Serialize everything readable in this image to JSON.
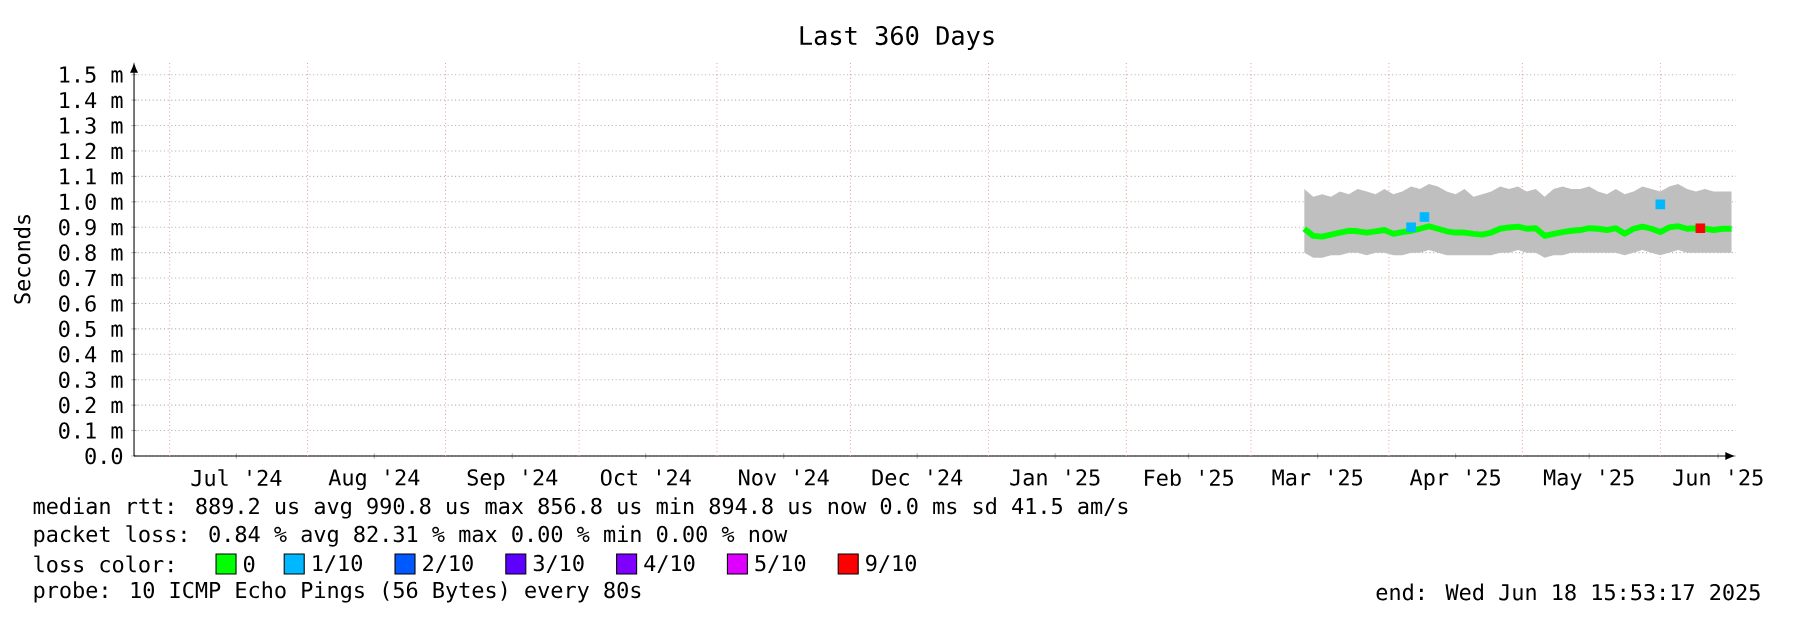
{
  "chart_data": {
    "type": "line",
    "title": "Last 360 Days",
    "ylabel": "Seconds",
    "x": [
      "2025-03-13",
      "2025-03-15",
      "2025-03-17",
      "2025-03-19",
      "2025-03-21",
      "2025-03-23",
      "2025-03-25",
      "2025-03-27",
      "2025-03-29",
      "2025-03-31",
      "2025-04-02",
      "2025-04-04",
      "2025-04-06",
      "2025-04-08",
      "2025-04-10",
      "2025-04-12",
      "2025-04-14",
      "2025-04-16",
      "2025-04-18",
      "2025-04-20",
      "2025-04-22",
      "2025-04-24",
      "2025-04-26",
      "2025-04-28",
      "2025-04-30",
      "2025-05-02",
      "2025-05-04",
      "2025-05-06",
      "2025-05-08",
      "2025-05-10",
      "2025-05-12",
      "2025-05-14",
      "2025-05-16",
      "2025-05-18",
      "2025-05-20",
      "2025-05-22",
      "2025-05-24",
      "2025-05-26",
      "2025-05-28",
      "2025-05-30",
      "2025-06-01",
      "2025-06-03",
      "2025-06-05",
      "2025-06-07",
      "2025-06-09",
      "2025-06-11",
      "2025-06-13",
      "2025-06-15",
      "2025-06-17"
    ],
    "series": [
      {
        "name": "0",
        "color": "#00ff00",
        "values": [
          0.894,
          0.866,
          0.863,
          0.871,
          0.879,
          0.886,
          0.884,
          0.879,
          0.884,
          0.889,
          0.874,
          0.881,
          0.886,
          0.894,
          0.904,
          0.894,
          0.884,
          0.879,
          0.879,
          0.874,
          0.871,
          0.879,
          0.894,
          0.899,
          0.902,
          0.894,
          0.896,
          0.866,
          0.874,
          0.881,
          0.886,
          0.889,
          0.896,
          0.894,
          0.889,
          0.896,
          0.874,
          0.894,
          0.902,
          0.894,
          0.881,
          0.899,
          0.904,
          0.894,
          0.896,
          0.894,
          0.889,
          0.894,
          0.894
        ],
        "lower": [
          0.8,
          0.78,
          0.78,
          0.79,
          0.79,
          0.8,
          0.8,
          0.79,
          0.8,
          0.8,
          0.79,
          0.79,
          0.8,
          0.8,
          0.81,
          0.8,
          0.79,
          0.79,
          0.79,
          0.79,
          0.79,
          0.79,
          0.8,
          0.8,
          0.81,
          0.8,
          0.8,
          0.78,
          0.79,
          0.79,
          0.8,
          0.8,
          0.8,
          0.8,
          0.8,
          0.8,
          0.79,
          0.8,
          0.81,
          0.8,
          0.79,
          0.8,
          0.81,
          0.8,
          0.8,
          0.8,
          0.8,
          0.8,
          0.8
        ],
        "upper": [
          1.05,
          1.02,
          1.03,
          1.02,
          1.04,
          1.03,
          1.05,
          1.04,
          1.03,
          1.05,
          1.03,
          1.04,
          1.06,
          1.05,
          1.07,
          1.06,
          1.04,
          1.03,
          1.05,
          1.02,
          1.03,
          1.04,
          1.06,
          1.05,
          1.06,
          1.04,
          1.05,
          1.02,
          1.05,
          1.06,
          1.05,
          1.05,
          1.06,
          1.04,
          1.03,
          1.05,
          1.03,
          1.04,
          1.06,
          1.05,
          1.04,
          1.06,
          1.07,
          1.05,
          1.04,
          1.05,
          1.04,
          1.04,
          1.04
        ]
      },
      {
        "name": "1/10",
        "color": "#00b8ff",
        "type": "scatter",
        "x": [
          "2025-04-06",
          "2025-04-09",
          "2025-06-01"
        ],
        "values": [
          0.9,
          0.94,
          0.99
        ]
      },
      {
        "name": "2/10",
        "color": "#0059ff",
        "type": "scatter",
        "values": [
          null,
          null,
          null,
          null,
          null,
          null,
          null,
          null,
          null,
          null,
          null,
          null,
          null,
          null,
          null,
          null,
          null,
          null,
          null,
          null,
          null,
          null,
          null,
          null,
          null,
          null,
          null,
          null,
          null,
          null,
          null,
          null,
          null,
          null,
          null,
          null,
          null,
          null,
          null,
          null,
          null,
          null,
          null,
          null,
          null,
          null,
          null,
          null,
          null
        ]
      },
      {
        "name": "3/10",
        "color": "#5e00ff",
        "type": "scatter",
        "values": [
          null,
          null,
          null,
          null,
          null,
          null,
          null,
          null,
          null,
          null,
          null,
          null,
          null,
          null,
          null,
          null,
          null,
          null,
          null,
          null,
          null,
          null,
          null,
          null,
          null,
          null,
          null,
          null,
          null,
          null,
          null,
          null,
          null,
          null,
          null,
          null,
          null,
          null,
          null,
          null,
          null,
          null,
          null,
          null,
          null,
          null,
          null,
          null,
          null
        ]
      },
      {
        "name": "4/10",
        "color": "#7e00ff",
        "type": "scatter",
        "values": [
          null,
          null,
          null,
          null,
          null,
          null,
          null,
          null,
          null,
          null,
          null,
          null,
          null,
          null,
          null,
          null,
          null,
          null,
          null,
          null,
          null,
          null,
          null,
          null,
          null,
          null,
          null,
          null,
          null,
          null,
          null,
          null,
          null,
          null,
          null,
          null,
          null,
          null,
          null,
          null,
          null,
          null,
          null,
          null,
          null,
          null,
          null,
          null,
          null
        ]
      },
      {
        "name": "5/10",
        "color": "#dd00ff",
        "type": "scatter",
        "values": [
          null,
          null,
          null,
          null,
          null,
          null,
          null,
          null,
          null,
          null,
          null,
          null,
          null,
          null,
          null,
          null,
          null,
          null,
          null,
          null,
          null,
          null,
          null,
          null,
          null,
          null,
          null,
          null,
          null,
          null,
          null,
          null,
          null,
          null,
          null,
          null,
          null,
          null,
          null,
          null,
          null,
          null,
          null,
          null,
          null,
          null,
          null,
          null,
          null
        ]
      },
      {
        "name": "9/10",
        "color": "#ff0000",
        "type": "scatter",
        "x": [
          "2025-06-10"
        ],
        "values": [
          0.896
        ]
      }
    ],
    "xlim": [
      "2024-06-23",
      "2025-06-18"
    ],
    "xticks": [
      {
        "value": "2024-07-16",
        "label": "Jul '24"
      },
      {
        "value": "2024-08-16",
        "label": "Aug '24"
      },
      {
        "value": "2024-09-16",
        "label": "Sep '24"
      },
      {
        "value": "2024-10-16",
        "label": "Oct '24"
      },
      {
        "value": "2024-11-16",
        "label": "Nov '24"
      },
      {
        "value": "2024-12-16",
        "label": "Dec '24"
      },
      {
        "value": "2025-01-16",
        "label": "Jan '25"
      },
      {
        "value": "2025-02-15",
        "label": "Feb '25"
      },
      {
        "value": "2025-03-16",
        "label": "Mar '25"
      },
      {
        "value": "2025-04-16",
        "label": "Apr '25"
      },
      {
        "value": "2025-05-16",
        "label": "May '25"
      },
      {
        "value": "2025-06-14",
        "label": "Jun '25"
      }
    ],
    "ylim": [
      0,
      1.55
    ],
    "yticks": [
      {
        "value": 0,
        "label": "0.0"
      },
      {
        "value": 0.1,
        "label": "0.1 m"
      },
      {
        "value": 0.2,
        "label": "0.2 m"
      },
      {
        "value": 0.3,
        "label": "0.3 m"
      },
      {
        "value": 0.4,
        "label": "0.4 m"
      },
      {
        "value": 0.5,
        "label": "0.5 m"
      },
      {
        "value": 0.6,
        "label": "0.6 m"
      },
      {
        "value": 0.7,
        "label": "0.7 m"
      },
      {
        "value": 0.8,
        "label": "0.8 m"
      },
      {
        "value": 0.9,
        "label": "0.9 m"
      },
      {
        "value": 1.0,
        "label": "1.0 m"
      },
      {
        "value": 1.1,
        "label": "1.1 m"
      },
      {
        "value": 1.2,
        "label": "1.2 m"
      },
      {
        "value": 1.3,
        "label": "1.3 m"
      },
      {
        "value": 1.4,
        "label": "1.4 m"
      },
      {
        "value": 1.5,
        "label": "1.5 m"
      }
    ],
    "ref_lines": [
      {
        "axis": "x",
        "value": "2024-07-01",
        "color": "#ff9999",
        "line_style": "dotted"
      },
      {
        "axis": "x",
        "value": "2024-08-01",
        "color": "#ff9999",
        "line_style": "dotted"
      },
      {
        "axis": "x",
        "value": "2024-09-01",
        "color": "#ff9999",
        "line_style": "dotted"
      },
      {
        "axis": "x",
        "value": "2024-10-01",
        "color": "#ff9999",
        "line_style": "dotted"
      },
      {
        "axis": "x",
        "value": "2024-11-01",
        "color": "#ff9999",
        "line_style": "dotted"
      },
      {
        "axis": "x",
        "value": "2024-12-01",
        "color": "#ff9999",
        "line_style": "dotted"
      },
      {
        "axis": "x",
        "value": "2025-01-01",
        "color": "#ff9999",
        "line_style": "dotted"
      },
      {
        "axis": "x",
        "value": "2025-02-01",
        "color": "#ff9999",
        "line_style": "dotted"
      },
      {
        "axis": "x",
        "value": "2025-03-01",
        "color": "#ff9999",
        "line_style": "dotted"
      },
      {
        "axis": "x",
        "value": "2025-04-01",
        "color": "#ff9999",
        "line_style": "dotted"
      },
      {
        "axis": "x",
        "value": "2025-05-01",
        "color": "#ff9999",
        "line_style": "dotted"
      },
      {
        "axis": "x",
        "value": "2025-06-01",
        "color": "#ff9999",
        "line_style": "dotted"
      }
    ],
    "grid": "y",
    "legend": "bottom",
    "legend_title": "loss color:",
    "annotations": [
      "median rtt: 889.2 us avg 990.8 us max 856.8 us min 894.8 us now 0.0 ms sd 41.5 am/s",
      "packet loss: 0.84 % avg 82.31 % max 0.00 % min 0.00 % now",
      "probe: 10 ICMP Echo Pings (56 Bytes) every 80s",
      "end: Wed Jun 18 15:53:17 2025"
    ]
  }
}
